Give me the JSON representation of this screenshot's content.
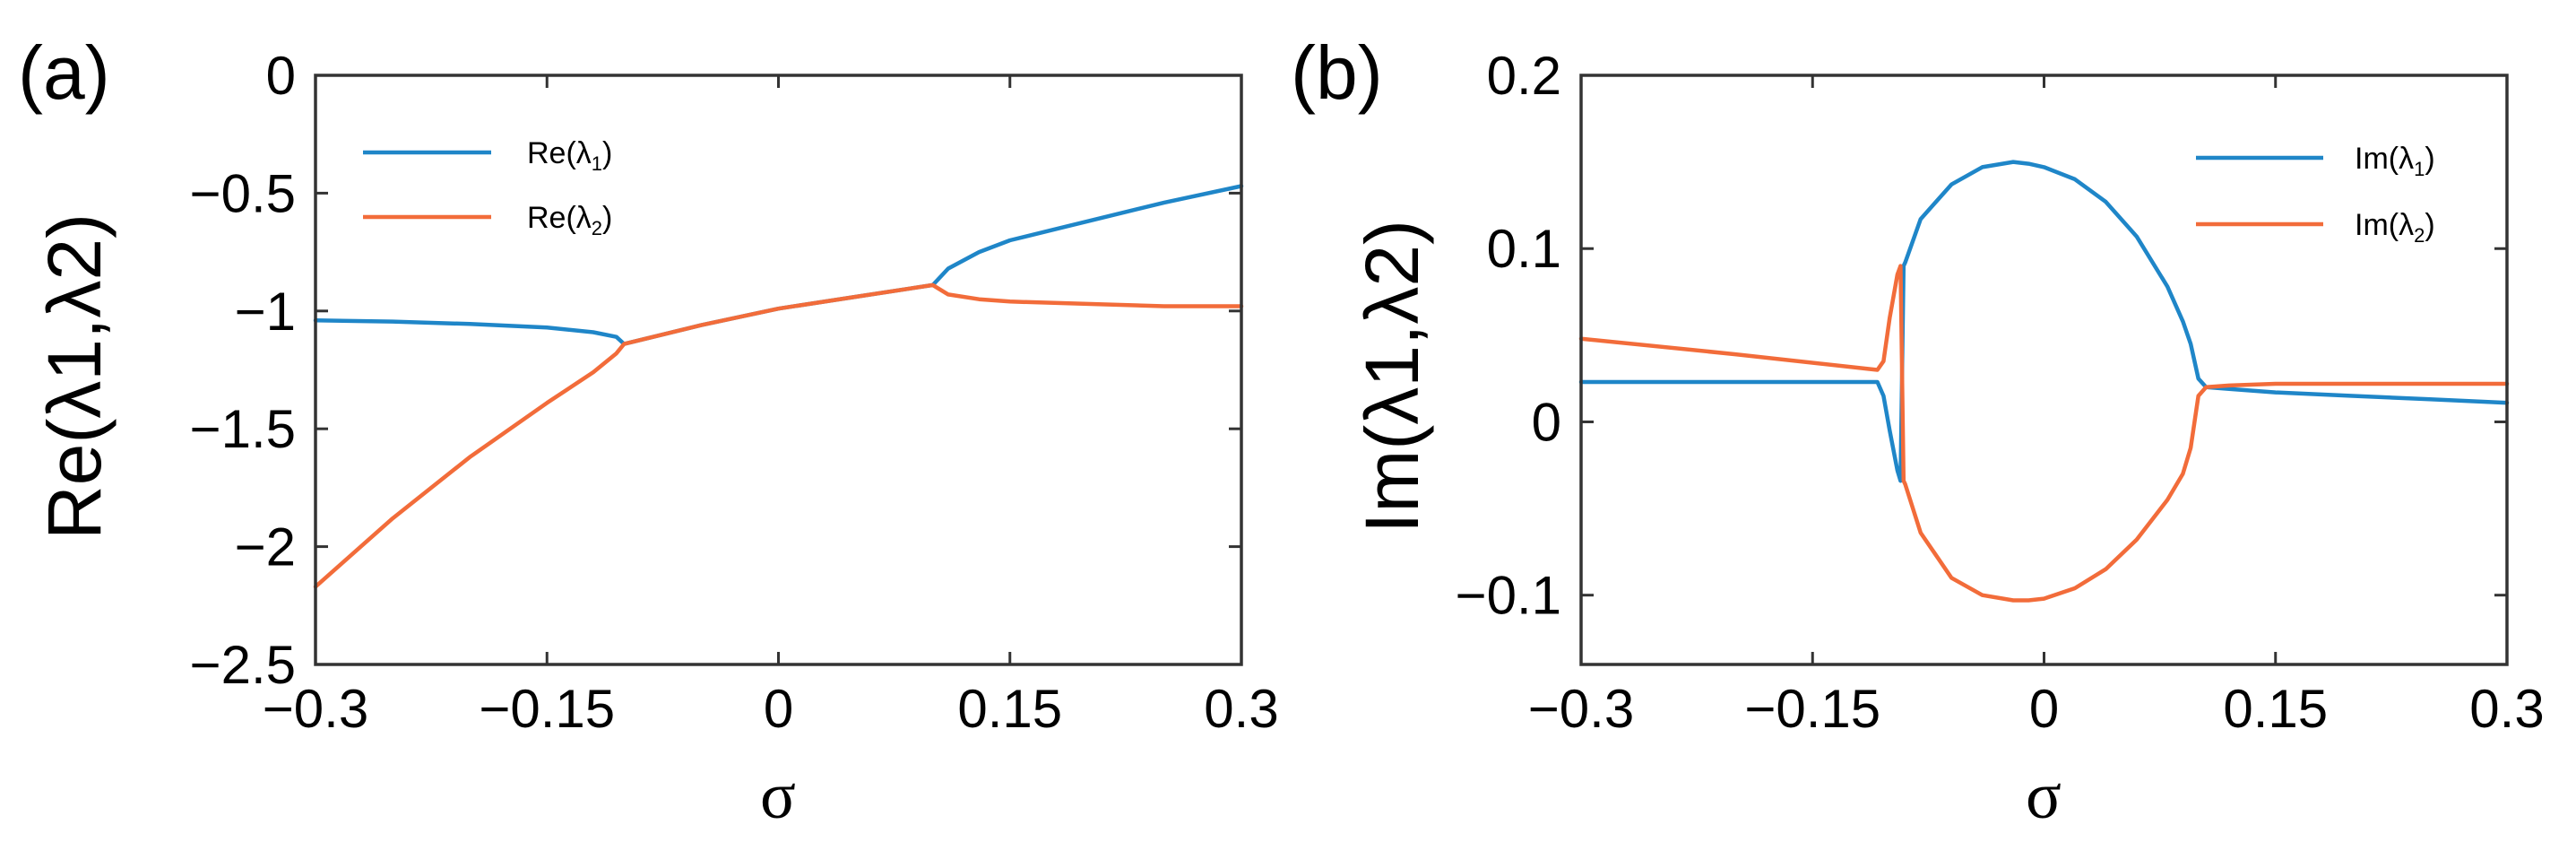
{
  "chart_data": [
    {
      "type": "line",
      "panel_label": "(a)",
      "xlabel": "σ",
      "ylabel": "Re(λ1,λ2)",
      "xlim": [
        -0.3,
        0.3
      ],
      "ylim": [
        -2.5,
        0
      ],
      "xticks": [
        -0.3,
        -0.15,
        0,
        0.15,
        0.3
      ],
      "xtick_labels": [
        "−0.3",
        "−0.15",
        "0",
        "0.15",
        "0.3"
      ],
      "yticks": [
        0,
        -0.5,
        -1,
        -1.5,
        -2,
        -2.5
      ],
      "ytick_labels": [
        "0",
        "−0.5",
        "−1",
        "−1.5",
        "−2",
        "−2.5"
      ],
      "legend_position": "top-left",
      "series": [
        {
          "name": "Re(λ1)",
          "legend_label": "Re(λ",
          "legend_sub": "1",
          "color": "#1f86c8",
          "x": [
            -0.3,
            -0.25,
            -0.2,
            -0.15,
            -0.12,
            -0.105,
            -0.1,
            -0.05,
            0,
            0.05,
            0.1,
            0.11,
            0.13,
            0.15,
            0.2,
            0.25,
            0.3
          ],
          "y": [
            -1.04,
            -1.045,
            -1.055,
            -1.07,
            -1.09,
            -1.11,
            -1.14,
            -1.06,
            -0.99,
            -0.94,
            -0.89,
            -0.82,
            -0.75,
            -0.7,
            -0.62,
            -0.54,
            -0.47
          ]
        },
        {
          "name": "Re(λ2)",
          "legend_label": "Re(λ",
          "legend_sub": "2",
          "color": "#f26c3a",
          "x": [
            -0.3,
            -0.25,
            -0.2,
            -0.15,
            -0.12,
            -0.105,
            -0.1,
            -0.05,
            0,
            0.05,
            0.1,
            0.11,
            0.13,
            0.15,
            0.2,
            0.25,
            0.3
          ],
          "y": [
            -2.17,
            -1.88,
            -1.62,
            -1.39,
            -1.26,
            -1.18,
            -1.14,
            -1.06,
            -0.99,
            -0.94,
            -0.89,
            -0.93,
            -0.95,
            -0.96,
            -0.97,
            -0.98,
            -0.98
          ]
        }
      ]
    },
    {
      "type": "line",
      "panel_label": "(b)",
      "xlabel": "σ",
      "ylabel": "Im(λ1,λ2)",
      "xlim": [
        -0.3,
        0.3
      ],
      "ylim": [
        -0.14,
        0.2
      ],
      "xticks": [
        -0.3,
        -0.15,
        0,
        0.15,
        0.3
      ],
      "xtick_labels": [
        "−0.3",
        "−0.15",
        "0",
        "0.15",
        "0.3"
      ],
      "yticks": [
        0.2,
        0.1,
        0,
        -0.1
      ],
      "ytick_labels": [
        "0.2",
        "0.1",
        "0",
        "−0.1"
      ],
      "legend_position": "top-right",
      "series": [
        {
          "name": "Im(λ1)",
          "legend_label": "Im(λ",
          "legend_sub": "1",
          "color": "#1f86c8",
          "x": [
            -0.3,
            -0.2,
            -0.108,
            -0.104,
            -0.1,
            -0.095,
            -0.093,
            -0.091,
            -0.09,
            -0.08,
            -0.06,
            -0.04,
            -0.02,
            -0.01,
            0,
            0.02,
            0.04,
            0.06,
            0.08,
            0.09,
            0.095,
            0.1,
            0.105,
            0.12,
            0.15,
            0.2,
            0.25,
            0.3
          ],
          "y": [
            0.023,
            0.023,
            0.023,
            0.015,
            -0.005,
            -0.028,
            -0.034,
            0.09,
            0.092,
            0.117,
            0.137,
            0.147,
            0.15,
            0.149,
            0.147,
            0.14,
            0.127,
            0.107,
            0.078,
            0.058,
            0.045,
            0.025,
            0.02,
            0.019,
            0.017,
            0.015,
            0.013,
            0.011
          ]
        },
        {
          "name": "Im(λ2)",
          "legend_label": "Im(λ",
          "legend_sub": "2",
          "color": "#f26c3a",
          "x": [
            -0.3,
            -0.2,
            -0.108,
            -0.104,
            -0.1,
            -0.095,
            -0.093,
            -0.091,
            -0.09,
            -0.08,
            -0.06,
            -0.04,
            -0.02,
            -0.01,
            0,
            0.02,
            0.04,
            0.06,
            0.08,
            0.09,
            0.095,
            0.1,
            0.105,
            0.12,
            0.15,
            0.2,
            0.25,
            0.3
          ],
          "y": [
            0.048,
            0.039,
            0.03,
            0.035,
            0.06,
            0.085,
            0.09,
            -0.034,
            -0.036,
            -0.064,
            -0.09,
            -0.1,
            -0.103,
            -0.103,
            -0.102,
            -0.096,
            -0.085,
            -0.068,
            -0.045,
            -0.03,
            -0.015,
            0.015,
            0.02,
            0.021,
            0.022,
            0.022,
            0.022,
            0.022
          ]
        }
      ]
    }
  ]
}
